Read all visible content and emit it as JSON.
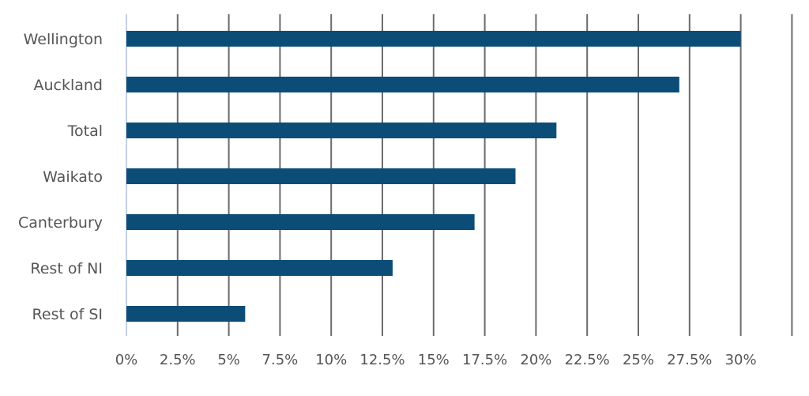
{
  "colors": {
    "bar": "#0b4d77",
    "grid": "#6b6b6b",
    "axis": "#c7cfe6",
    "text": "#555555"
  },
  "chart_data": {
    "type": "bar",
    "orientation": "horizontal",
    "title": "",
    "xlabel": "",
    "ylabel": "",
    "categories": [
      "Wellington",
      "Auckland",
      "Total",
      "Waikato",
      "Canterbury",
      "Rest of NI",
      "Rest of SI"
    ],
    "values": [
      30,
      27,
      21,
      19,
      17,
      13,
      5.8
    ],
    "unit": "%",
    "xlim": [
      0,
      32.5
    ],
    "xticks": [
      0,
      2.5,
      5,
      7.5,
      10,
      12.5,
      15,
      17.5,
      20,
      22.5,
      25,
      27.5,
      30
    ],
    "xtick_labels": [
      "0%",
      "2.5%",
      "5%",
      "7.5%",
      "10%",
      "12.5%",
      "15%",
      "17.5%",
      "20%",
      "22.5%",
      "25%",
      "27.5%",
      "30%"
    ],
    "grid": "vertical",
    "legend": "none"
  }
}
